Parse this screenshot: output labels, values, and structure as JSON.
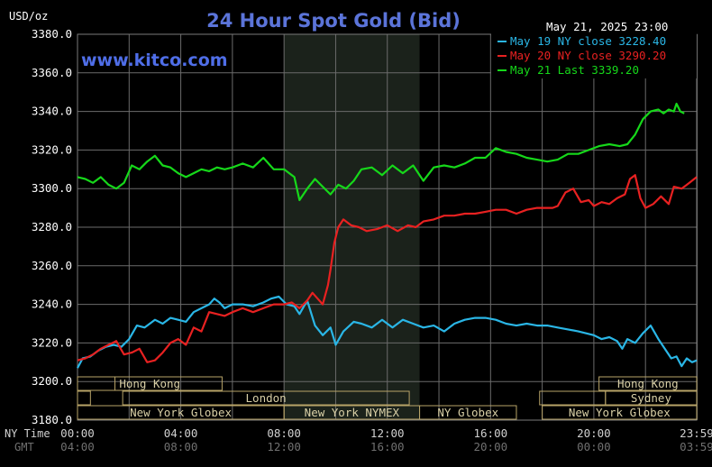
{
  "header": {
    "title": "24 Hour Spot Gold (Bid)",
    "unit": "USD/oz",
    "watermark": "www.kitco.com",
    "timestamp": "May 21, 2025 23:00"
  },
  "colors": {
    "background": "#000000",
    "title": "#5b74d9",
    "watermark": "#4f6ee8",
    "grid": "#6b6b6b",
    "session_box": "#b8a468",
    "session_text": "#d8cfa6",
    "nymex_shade": "#1b221b",
    "ny_time_text": "#d0d0d0",
    "gmt_text": "#707070"
  },
  "axis": {
    "ny_label": "NY Time",
    "gmt_label": "GMT",
    "ny_ticks": [
      {
        "h": 0,
        "label": "00:00"
      },
      {
        "h": 4,
        "label": "04:00"
      },
      {
        "h": 8,
        "label": "08:00"
      },
      {
        "h": 12,
        "label": "12:00"
      },
      {
        "h": 16,
        "label": "16:00"
      },
      {
        "h": 20,
        "label": "20:00"
      },
      {
        "h": 23.983,
        "label": "23:59"
      }
    ],
    "gmt_ticks": [
      {
        "h": 0,
        "label": "04:00"
      },
      {
        "h": 4,
        "label": "08:00"
      },
      {
        "h": 8,
        "label": "12:00"
      },
      {
        "h": 12,
        "label": "16:00"
      },
      {
        "h": 16,
        "label": "20:00"
      },
      {
        "h": 20,
        "label": "00:00"
      },
      {
        "h": 23.983,
        "label": "03:59"
      }
    ]
  },
  "sessions": [
    {
      "row": 0,
      "start": 0.0,
      "end": 1.45,
      "label": ""
    },
    {
      "row": 1,
      "start": 0.0,
      "end": 0.5,
      "label": ""
    },
    {
      "row": 1,
      "start": 17.9,
      "end": 20.45,
      "label": ""
    },
    {
      "row": 0,
      "start": 0.0,
      "end": 5.6,
      "label": "Hong Kong"
    },
    {
      "row": 0,
      "start": 20.2,
      "end": 23.983,
      "label": "Hong Kong"
    },
    {
      "row": 1,
      "start": 1.75,
      "end": 12.85,
      "label": "London"
    },
    {
      "row": 1,
      "start": 20.45,
      "end": 23.983,
      "label": "Sydney"
    },
    {
      "row": 2,
      "start": 0.0,
      "end": 8.0,
      "label": "New York Globex"
    },
    {
      "row": 2,
      "start": 8.0,
      "end": 13.25,
      "label": "New York NYMEX"
    },
    {
      "row": 2,
      "start": 13.25,
      "end": 17.0,
      "label": "NY Globex"
    },
    {
      "row": 2,
      "start": 18.0,
      "end": 23.983,
      "label": "New York Globex"
    }
  ],
  "chart_data": {
    "type": "line",
    "title": "24 Hour Spot Gold (Bid)",
    "ylabel": "USD/oz",
    "xlabel": "NY Time",
    "xlim": [
      0,
      23.983
    ],
    "ylim": [
      3180,
      3380
    ],
    "y_ticks": [
      3180,
      3200,
      3220,
      3240,
      3260,
      3280,
      3300,
      3320,
      3340,
      3360,
      3380
    ],
    "grid": true,
    "legend_position": "top-right",
    "shaded_region": {
      "start": 8.0,
      "end": 13.25,
      "label": "New York NYMEX"
    },
    "series": [
      {
        "name": "May 19 NY close 3228.40",
        "color": "#2ab6e6",
        "x": [
          0.0,
          0.2,
          0.5,
          0.8,
          1.1,
          1.4,
          1.7,
          2.0,
          2.3,
          2.6,
          3.0,
          3.3,
          3.6,
          3.9,
          4.2,
          4.5,
          4.8,
          5.1,
          5.3,
          5.5,
          5.7,
          6.0,
          6.4,
          6.8,
          7.2,
          7.5,
          7.8,
          8.1,
          8.4,
          8.6,
          8.9,
          9.2,
          9.5,
          9.8,
          10.0,
          10.3,
          10.7,
          11.0,
          11.4,
          11.8,
          12.2,
          12.6,
          13.0,
          13.4,
          13.8,
          14.2,
          14.6,
          15.0,
          15.4,
          15.8,
          16.2,
          16.6,
          17.0,
          17.4,
          17.8,
          18.2,
          18.6,
          19.0,
          19.4,
          19.7,
          20.0,
          20.3,
          20.6,
          20.9,
          21.1,
          21.3,
          21.6,
          21.9,
          22.2,
          22.5,
          22.8,
          23.0,
          23.2,
          23.4,
          23.6,
          23.8,
          23.983
        ],
        "y": [
          3207,
          3212,
          3213,
          3216,
          3218,
          3219,
          3218,
          3222,
          3229,
          3228,
          3232,
          3230,
          3233,
          3232,
          3231,
          3236,
          3238,
          3240,
          3243,
          3241,
          3238,
          3240,
          3240,
          3239,
          3241,
          3243,
          3244,
          3240,
          3239,
          3235,
          3242,
          3229,
          3224,
          3228,
          3219,
          3226,
          3231,
          3230,
          3228,
          3232,
          3228,
          3232,
          3230,
          3228,
          3229,
          3226,
          3230,
          3232,
          3233,
          3233,
          3232,
          3230,
          3229,
          3230,
          3229,
          3229,
          3228,
          3227,
          3226,
          3225,
          3224,
          3222,
          3223,
          3221,
          3217,
          3222,
          3220,
          3225,
          3229,
          3222,
          3216,
          3212,
          3213,
          3208,
          3212,
          3210,
          3211
        ]
      },
      {
        "name": "May 20 NY close 3290.20",
        "color": "#e82121",
        "x": [
          0.0,
          0.3,
          0.6,
          0.9,
          1.2,
          1.5,
          1.8,
          2.1,
          2.4,
          2.7,
          3.0,
          3.3,
          3.6,
          3.9,
          4.2,
          4.5,
          4.8,
          5.1,
          5.4,
          5.7,
          6.0,
          6.4,
          6.8,
          7.2,
          7.6,
          8.0,
          8.3,
          8.6,
          8.9,
          9.1,
          9.3,
          9.5,
          9.7,
          9.8,
          9.95,
          10.1,
          10.3,
          10.6,
          10.9,
          11.2,
          11.6,
          12.0,
          12.4,
          12.8,
          13.1,
          13.4,
          13.8,
          14.2,
          14.6,
          15.0,
          15.4,
          15.8,
          16.2,
          16.6,
          17.0,
          17.4,
          17.8,
          18.2,
          18.4,
          18.6,
          18.9,
          19.2,
          19.5,
          19.8,
          20.0,
          20.3,
          20.6,
          20.9,
          21.2,
          21.4,
          21.6,
          21.8,
          22.0,
          22.3,
          22.6,
          22.9,
          23.1,
          23.4,
          23.7,
          23.983
        ],
        "y": [
          3211,
          3212,
          3214,
          3217,
          3219,
          3221,
          3214,
          3215,
          3217,
          3210,
          3211,
          3215,
          3220,
          3222,
          3219,
          3228,
          3226,
          3236,
          3235,
          3234,
          3236,
          3238,
          3236,
          3238,
          3240,
          3240,
          3241,
          3238,
          3242,
          3246,
          3243,
          3240,
          3250,
          3258,
          3272,
          3280,
          3284,
          3281,
          3280,
          3278,
          3279,
          3281,
          3278,
          3281,
          3280,
          3283,
          3284,
          3286,
          3286,
          3287,
          3287,
          3288,
          3289,
          3289,
          3287,
          3289,
          3290,
          3290,
          3290,
          3291,
          3298,
          3300,
          3293,
          3294,
          3291,
          3293,
          3292,
          3295,
          3297,
          3305,
          3307,
          3295,
          3290,
          3292,
          3296,
          3292,
          3301,
          3300,
          3303,
          3306
        ]
      },
      {
        "name": "May 21 Last 3339.20",
        "color": "#16d81a",
        "x": [
          0.0,
          0.3,
          0.6,
          0.9,
          1.2,
          1.5,
          1.8,
          2.1,
          2.4,
          2.7,
          3.0,
          3.3,
          3.6,
          3.9,
          4.2,
          4.5,
          4.8,
          5.1,
          5.4,
          5.7,
          6.0,
          6.4,
          6.8,
          7.2,
          7.6,
          8.0,
          8.2,
          8.4,
          8.6,
          8.9,
          9.2,
          9.5,
          9.8,
          10.1,
          10.4,
          10.7,
          11.0,
          11.4,
          11.8,
          12.2,
          12.6,
          13.0,
          13.4,
          13.8,
          14.2,
          14.6,
          15.0,
          15.4,
          15.8,
          16.2,
          16.6,
          17.0,
          17.4,
          17.8,
          18.2,
          18.6,
          19.0,
          19.4,
          19.8,
          20.2,
          20.6,
          21.0,
          21.3,
          21.6,
          21.9,
          22.2,
          22.5,
          22.7,
          22.9,
          23.1,
          23.2,
          23.35,
          23.5
        ],
        "y": [
          3306,
          3305,
          3303,
          3306,
          3302,
          3300,
          3303,
          3312,
          3310,
          3314,
          3317,
          3312,
          3311,
          3308,
          3306,
          3308,
          3310,
          3309,
          3311,
          3310,
          3311,
          3313,
          3311,
          3316,
          3310,
          3310,
          3308,
          3306,
          3294,
          3300,
          3305,
          3301,
          3297,
          3302,
          3300,
          3304,
          3310,
          3311,
          3307,
          3312,
          3308,
          3312,
          3304,
          3311,
          3312,
          3311,
          3313,
          3316,
          3316,
          3321,
          3319,
          3318,
          3316,
          3315,
          3314,
          3315,
          3318,
          3318,
          3320,
          3322,
          3323,
          3322,
          3323,
          3328,
          3336,
          3340,
          3341,
          3339,
          3341,
          3340,
          3344,
          3340,
          3339
        ]
      }
    ]
  }
}
